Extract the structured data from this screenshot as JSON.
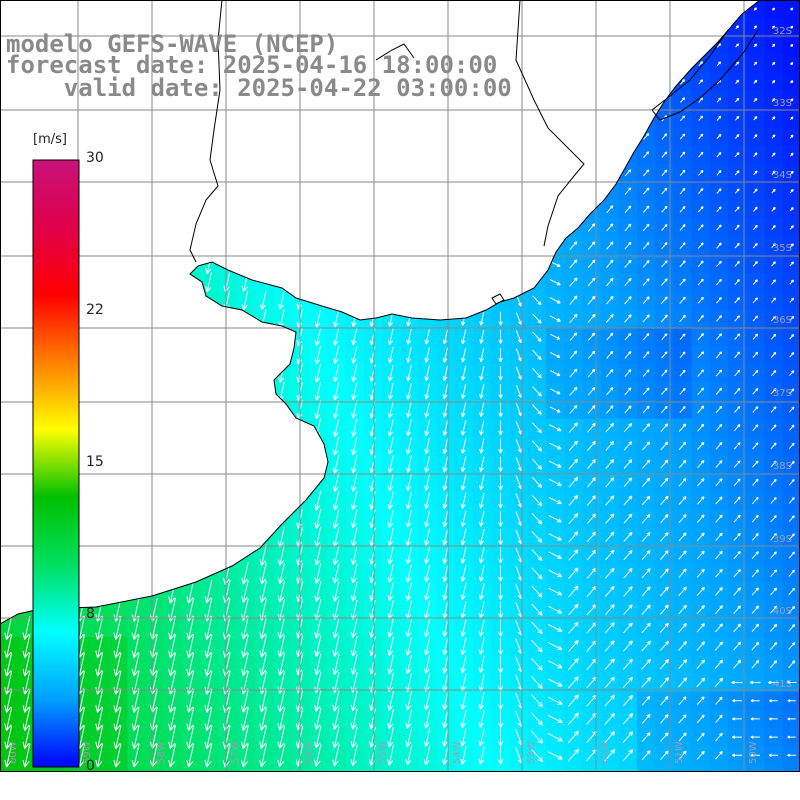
{
  "title": {
    "line1": "modelo GEFS-WAVE (NCEP)",
    "line2": "forecast date: 2025-04-16 18:00:00",
    "line3": "    valid date: 2025-04-22 03:00:00"
  },
  "colorbar": {
    "unit": "[m/s]",
    "min": 0,
    "max": 30,
    "ticks": [
      {
        "value": 30,
        "label": "30"
      },
      {
        "value": 22,
        "label": "22"
      },
      {
        "value": 15,
        "label": "15"
      },
      {
        "value": 8,
        "label": "8"
      },
      {
        "value": 0,
        "label": "0"
      }
    ],
    "stops": [
      "#0000ff",
      "#00a0ff",
      "#00ffff",
      "#00e060",
      "#00c000",
      "#ffff00",
      "#ff8000",
      "#ff0000",
      "#e0004a",
      "#c8127a"
    ]
  },
  "map": {
    "field": "wind speed",
    "colors": {
      "land": "#ffffff",
      "coast": "#000000",
      "grid": "#888888",
      "arrow": "#ffffff"
    },
    "right_lat_labels": [
      "32S",
      "33S",
      "34S",
      "35S",
      "36S",
      "37S",
      "38S",
      "39S",
      "40S",
      "41S"
    ],
    "bottom_lon_labels": [
      "60W",
      "59W",
      "58W",
      "57W",
      "56W",
      "55W",
      "54W",
      "53W",
      "52W",
      "51W",
      "50W"
    ]
  }
}
